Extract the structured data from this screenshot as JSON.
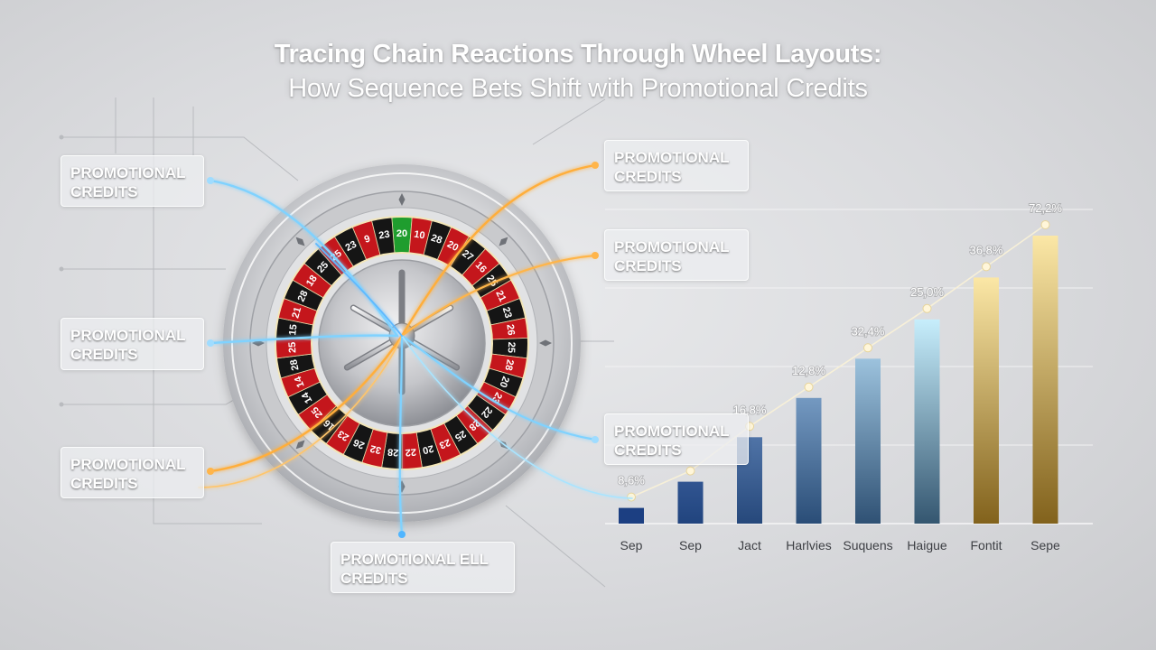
{
  "header": {
    "title_line1": "Tracing Chain Reactions Through Wheel Layouts:",
    "title_line2": "How Sequence Bets Shift with Promotional Credits"
  },
  "callouts": [
    {
      "id": "left-top",
      "text": "PROMOTIONAL\nCREDITS"
    },
    {
      "id": "left-middle",
      "text": "PROMOTIONAL\nCREDITS"
    },
    {
      "id": "left-bottom",
      "text": "PROMOTIONAL\nCREDITS"
    },
    {
      "id": "bottom-center",
      "text": "PROMOTIONAL ELL\nCREDITS"
    },
    {
      "id": "right-top",
      "text": "PROMOTIONAL\nCREDITS"
    },
    {
      "id": "right-middle",
      "text": "PROMOTIONAL\nCREDITS"
    },
    {
      "id": "chart-overlay",
      "text": "PROMOTIONAL\nCREDITS"
    }
  ],
  "wheel": {
    "numbers": [
      "20",
      "10",
      "28",
      "20",
      "27",
      "16",
      "25",
      "21",
      "23",
      "26",
      "25",
      "28",
      "20",
      "23",
      "22",
      "28",
      "25",
      "23",
      "20",
      "22",
      "28",
      "32",
      "26",
      "23",
      "16",
      "25",
      "14",
      "14",
      "28",
      "25",
      "15",
      "21",
      "28",
      "18",
      "25",
      "25",
      "23",
      "9",
      "23"
    ],
    "colors": {
      "red": "#c4161c",
      "black": "#151515",
      "green": "#1f9d2e"
    }
  },
  "chart_data": {
    "type": "bar",
    "categories": [
      "Sep",
      "Sep",
      "Jact",
      "Harlvies",
      "Suquens",
      "Haigue",
      "Fontit",
      "Sepe"
    ],
    "values": [
      6,
      16,
      33,
      48,
      63,
      78,
      94,
      110
    ],
    "point_labels": [
      "8,6%",
      "",
      "16,8%",
      "12,8%",
      "32,4%",
      "25,0%",
      "36,8%",
      "72,2%"
    ],
    "ylim": [
      0,
      120
    ],
    "grid": true,
    "colors": {
      "blue_dark": "#1c3f82",
      "blue_light": "#c7eefc",
      "gold_light": "#fbe7a6",
      "gold_dark": "#82621c"
    }
  }
}
